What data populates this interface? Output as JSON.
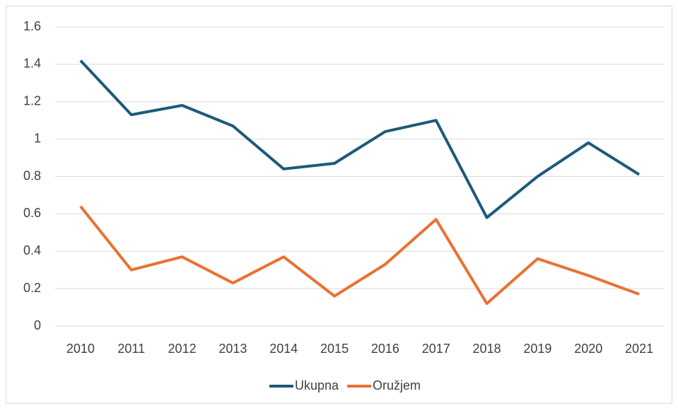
{
  "chart_data": {
    "type": "line",
    "x": [
      "2010",
      "2011",
      "2012",
      "2013",
      "2014",
      "2015",
      "2016",
      "2017",
      "2018",
      "2019",
      "2020",
      "2021"
    ],
    "series": [
      {
        "name": "Ukupna",
        "color": "#1d5a7a",
        "values": [
          1.42,
          1.13,
          1.18,
          1.07,
          0.84,
          0.87,
          1.04,
          1.1,
          0.58,
          0.8,
          0.98,
          0.81
        ]
      },
      {
        "name": "Oružjem",
        "color": "#e97132",
        "values": [
          0.64,
          0.3,
          0.37,
          0.23,
          0.37,
          0.16,
          0.33,
          0.57,
          0.12,
          0.36,
          0.27,
          0.17
        ]
      }
    ],
    "ylim": [
      0,
      1.6
    ],
    "yticks": [
      0,
      0.2,
      0.4,
      0.6,
      0.8,
      1,
      1.2,
      1.4,
      1.6
    ],
    "grid": true,
    "legend": "bottom"
  }
}
